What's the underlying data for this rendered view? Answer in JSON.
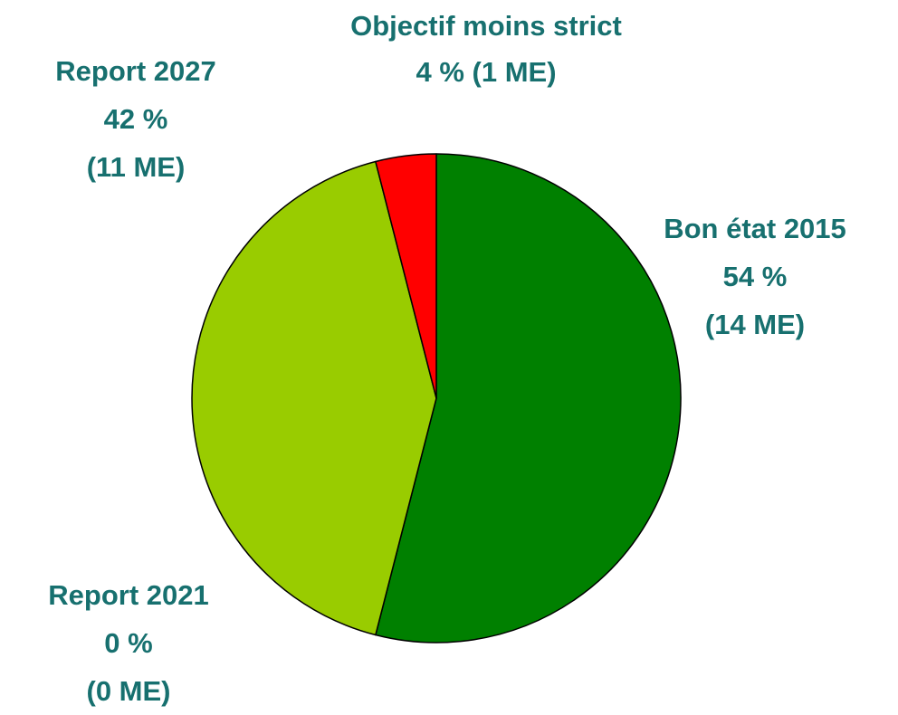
{
  "chart_data": {
    "type": "pie",
    "categories": [
      "Bon état 2015",
      "Report 2021",
      "Report 2027",
      "Objectif moins strict"
    ],
    "values": [
      54,
      0,
      42,
      4
    ],
    "value_labels": [
      "54 %",
      "0 %",
      "42 %",
      "4 %"
    ],
    "counts": [
      14,
      0,
      11,
      1
    ],
    "count_labels": [
      "(14 ME)",
      "(0 ME)",
      "(11 ME)",
      "(1 ME)"
    ],
    "colors": [
      "#008000",
      null,
      "#99cc00",
      "#ff0000"
    ]
  }
}
